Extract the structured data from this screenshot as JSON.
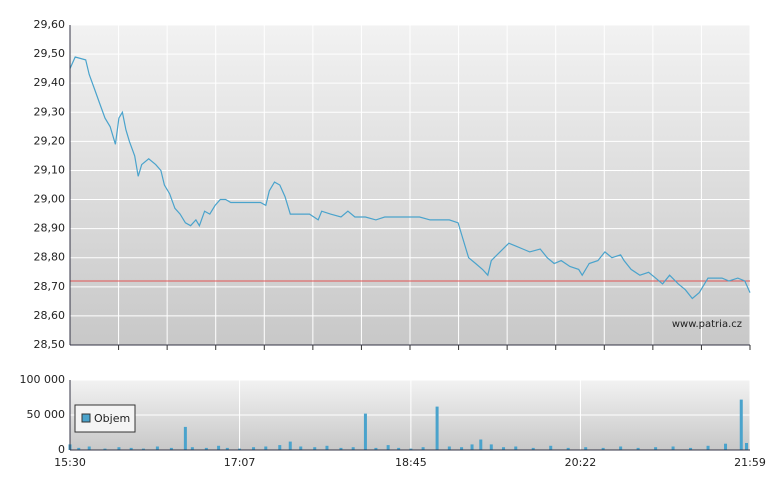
{
  "chart_data": [
    {
      "type": "line",
      "x": [
        "15:30",
        "15:33",
        "15:39",
        "15:41",
        "15:44",
        "15:47",
        "15:50",
        "15:53",
        "15:56",
        "15:58",
        "16:00",
        "16:02",
        "16:04",
        "16:07",
        "16:09",
        "16:11",
        "16:15",
        "16:19",
        "16:22",
        "16:24",
        "16:27",
        "16:30",
        "16:33",
        "16:36",
        "16:39",
        "16:42",
        "16:44",
        "16:47",
        "16:50",
        "16:53",
        "16:56",
        "16:59",
        "17:02",
        "17:07",
        "17:13",
        "17:19",
        "17:22",
        "17:24",
        "17:27",
        "17:30",
        "17:33",
        "17:36",
        "17:42",
        "17:47",
        "17:52",
        "17:54",
        "17:59",
        "18:05",
        "18:09",
        "18:13",
        "18:19",
        "18:25",
        "18:30",
        "18:36",
        "18:45",
        "18:50",
        "18:56",
        "19:02",
        "19:07",
        "19:12",
        "19:14",
        "19:18",
        "19:22",
        "19:26",
        "19:29",
        "19:31",
        "19:36",
        "19:41",
        "19:45",
        "19:49",
        "19:53",
        "19:59",
        "20:03",
        "20:07",
        "20:11",
        "20:16",
        "20:21",
        "20:23",
        "20:27",
        "20:32",
        "20:36",
        "20:40",
        "20:45",
        "20:47",
        "20:51",
        "20:56",
        "21:01",
        "21:05",
        "21:09",
        "21:13",
        "21:18",
        "21:22",
        "21:26",
        "21:30",
        "21:35",
        "21:39",
        "21:43",
        "21:47",
        "21:52",
        "21:56",
        "21:59"
      ],
      "values": [
        29.45,
        29.49,
        29.48,
        29.43,
        29.38,
        29.33,
        29.28,
        29.25,
        29.19,
        29.28,
        29.3,
        29.24,
        29.2,
        29.15,
        29.08,
        29.12,
        29.14,
        29.12,
        29.1,
        29.05,
        29.02,
        28.97,
        28.95,
        28.92,
        28.91,
        28.93,
        28.91,
        28.96,
        28.95,
        28.98,
        29.0,
        29.0,
        28.99,
        28.99,
        28.99,
        28.99,
        28.98,
        29.03,
        29.06,
        29.05,
        29.01,
        28.95,
        28.95,
        28.95,
        28.93,
        28.96,
        28.95,
        28.94,
        28.96,
        28.94,
        28.94,
        28.93,
        28.94,
        28.94,
        28.94,
        28.94,
        28.93,
        28.93,
        28.93,
        28.92,
        28.88,
        28.8,
        28.78,
        28.76,
        28.74,
        28.79,
        28.82,
        28.85,
        28.84,
        28.83,
        28.82,
        28.83,
        28.8,
        28.78,
        28.79,
        28.77,
        28.76,
        28.74,
        28.78,
        28.79,
        28.82,
        28.8,
        28.81,
        28.79,
        28.76,
        28.74,
        28.75,
        28.73,
        28.71,
        28.74,
        28.71,
        28.69,
        28.66,
        28.68,
        28.73,
        28.73,
        28.73,
        28.72,
        28.73,
        28.72,
        28.68
      ],
      "color": "#4aa3cc",
      "xlim": [
        "15:30",
        "21:59"
      ],
      "ylim": [
        28.5,
        29.6
      ],
      "yticks": [
        {
          "value": 28.5,
          "label": "28,50"
        },
        {
          "value": 28.6,
          "label": "28,60"
        },
        {
          "value": 28.7,
          "label": "28,70"
        },
        {
          "value": 28.8,
          "label": "28,80"
        },
        {
          "value": 28.9,
          "label": "28,90"
        },
        {
          "value": 29.0,
          "label": "29,00"
        },
        {
          "value": 29.1,
          "label": "29,10"
        },
        {
          "value": 29.2,
          "label": "29,20"
        },
        {
          "value": 29.3,
          "label": "29,30"
        },
        {
          "value": 29.4,
          "label": "29,40"
        },
        {
          "value": 29.5,
          "label": "29,50"
        },
        {
          "value": 29.6,
          "label": "29,60"
        }
      ],
      "reference_line": {
        "value": 28.72,
        "color": "#e05555"
      },
      "watermark": "www.patria.cz"
    },
    {
      "type": "bar",
      "x": [
        "15:30",
        "15:35",
        "15:41",
        "15:50",
        "15:58",
        "16:05",
        "16:12",
        "16:20",
        "16:28",
        "16:36",
        "16:40",
        "16:48",
        "16:55",
        "17:00",
        "17:07",
        "17:15",
        "17:22",
        "17:30",
        "17:36",
        "17:42",
        "17:50",
        "17:57",
        "18:05",
        "18:12",
        "18:19",
        "18:25",
        "18:32",
        "18:38",
        "18:45",
        "18:52",
        "19:00",
        "19:07",
        "19:14",
        "19:20",
        "19:25",
        "19:31",
        "19:38",
        "19:45",
        "19:55",
        "20:05",
        "20:15",
        "20:25",
        "20:35",
        "20:45",
        "20:55",
        "21:05",
        "21:15",
        "21:25",
        "21:35",
        "21:45",
        "21:54",
        "21:57"
      ],
      "series": [
        {
          "name": "Objem",
          "color": "#4aa3cc",
          "values": [
            8000,
            3000,
            5000,
            2000,
            4000,
            3000,
            2000,
            5000,
            3000,
            33000,
            4000,
            3000,
            6000,
            3000,
            2000,
            4000,
            5000,
            7000,
            12000,
            5000,
            4000,
            6000,
            3000,
            4000,
            52000,
            3000,
            7000,
            3000,
            2000,
            4000,
            62000,
            5000,
            4000,
            8000,
            15000,
            8000,
            4000,
            5000,
            3000,
            6000,
            3000,
            4000,
            3000,
            5000,
            3000,
            4000,
            5000,
            3000,
            6000,
            9000,
            72000,
            10000
          ]
        }
      ],
      "xlim": [
        "15:30",
        "21:59"
      ],
      "xticks": [
        "15:30",
        "17:07",
        "18:45",
        "20:22",
        "21:59"
      ],
      "ylim": [
        0,
        100000
      ],
      "yticks": [
        0,
        {
          "value": 50000,
          "label": "50 000"
        },
        {
          "value": 100000,
          "label": "100 000"
        }
      ]
    }
  ]
}
